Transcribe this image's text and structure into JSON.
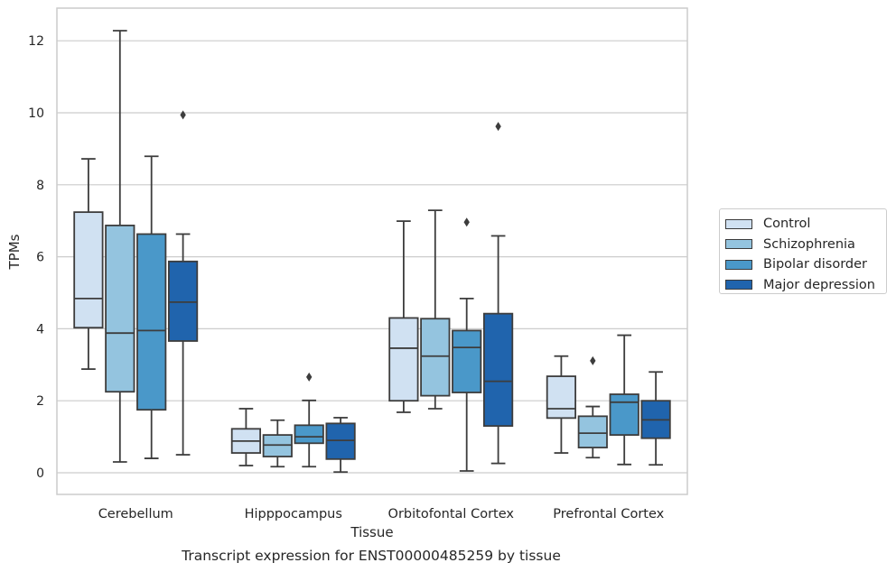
{
  "chart_data": {
    "type": "box",
    "title": "",
    "caption": "Transcript expression for ENST00000485259 by tissue",
    "xlabel": "Tissue",
    "ylabel": "TPMs",
    "ylim": [
      -0.6,
      12.9
    ],
    "yticks": [
      0,
      2,
      4,
      6,
      8,
      10,
      12
    ],
    "grid": true,
    "legend_position": "right",
    "categories": [
      "Cerebellum",
      "Hipppocampus",
      "Orbitofontal Cortex",
      "Prefrontal Cortex"
    ],
    "series": [
      {
        "name": "Control",
        "color": "#d0e1f2",
        "boxes": [
          {
            "whisker_low": 2.88,
            "q1": 4.03,
            "median": 4.84,
            "q3": 7.24,
            "whisker_high": 8.72,
            "outliers": []
          },
          {
            "whisker_low": 0.2,
            "q1": 0.55,
            "median": 0.88,
            "q3": 1.22,
            "whisker_high": 1.78,
            "outliers": []
          },
          {
            "whisker_low": 1.68,
            "q1": 2.0,
            "median": 3.46,
            "q3": 4.3,
            "whisker_high": 6.99,
            "outliers": []
          },
          {
            "whisker_low": 0.55,
            "q1": 1.52,
            "median": 1.78,
            "q3": 2.68,
            "whisker_high": 3.24,
            "outliers": []
          }
        ]
      },
      {
        "name": "Schizophrenia",
        "color": "#94c4df",
        "boxes": [
          {
            "whisker_low": 0.3,
            "q1": 2.25,
            "median": 3.88,
            "q3": 6.87,
            "whisker_high": 12.28,
            "outliers": []
          },
          {
            "whisker_low": 0.17,
            "q1": 0.45,
            "median": 0.77,
            "q3": 1.05,
            "whisker_high": 1.46,
            "outliers": []
          },
          {
            "whisker_low": 1.78,
            "q1": 2.14,
            "median": 3.24,
            "q3": 4.28,
            "whisker_high": 7.29,
            "outliers": []
          },
          {
            "whisker_low": 0.42,
            "q1": 0.7,
            "median": 1.1,
            "q3": 1.57,
            "whisker_high": 1.84,
            "outliers": [
              3.11
            ]
          }
        ]
      },
      {
        "name": "Bipolar disorder",
        "color": "#4a98c9",
        "boxes": [
          {
            "whisker_low": 0.4,
            "q1": 1.75,
            "median": 3.95,
            "q3": 6.63,
            "whisker_high": 8.79,
            "outliers": []
          },
          {
            "whisker_low": 0.17,
            "q1": 0.82,
            "median": 1.0,
            "q3": 1.32,
            "whisker_high": 2.01,
            "outliers": [
              2.66
            ]
          },
          {
            "whisker_low": 0.05,
            "q1": 2.23,
            "median": 3.48,
            "q3": 3.95,
            "whisker_high": 4.84,
            "outliers": [
              6.96
            ]
          },
          {
            "whisker_low": 0.23,
            "q1": 1.05,
            "median": 1.96,
            "q3": 2.18,
            "whisker_high": 3.82,
            "outliers": []
          }
        ]
      },
      {
        "name": "Major depression",
        "color": "#2064ad",
        "boxes": [
          {
            "whisker_low": 0.5,
            "q1": 3.66,
            "median": 4.74,
            "q3": 5.87,
            "whisker_high": 6.63,
            "outliers": [
              9.94
            ]
          },
          {
            "whisker_low": 0.02,
            "q1": 0.38,
            "median": 0.9,
            "q3": 1.37,
            "whisker_high": 1.53,
            "outliers": []
          },
          {
            "whisker_low": 0.26,
            "q1": 1.3,
            "median": 2.54,
            "q3": 4.42,
            "whisker_high": 6.58,
            "outliers": [
              9.62
            ]
          },
          {
            "whisker_low": 0.22,
            "q1": 0.96,
            "median": 1.47,
            "q3": 2.0,
            "whisker_high": 2.8,
            "outliers": []
          }
        ]
      }
    ]
  }
}
